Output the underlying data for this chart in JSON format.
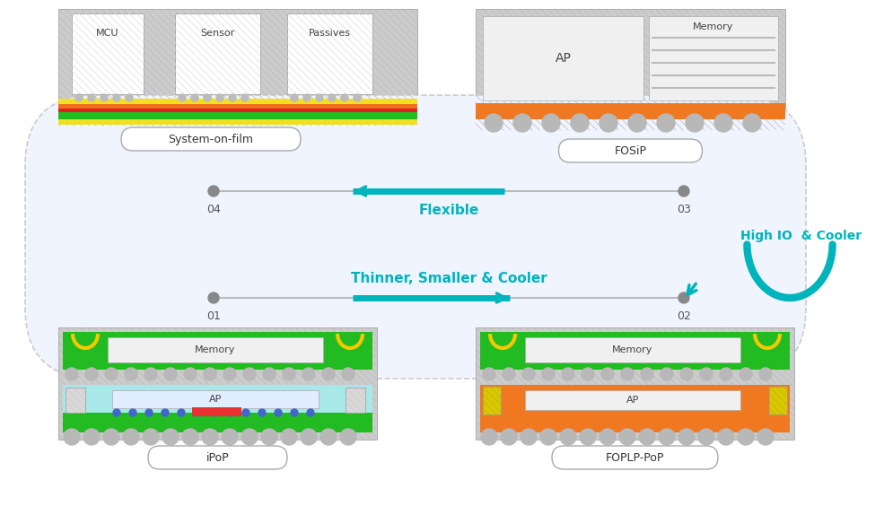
{
  "bg_color": "#ffffff",
  "teal": "#00b4bc",
  "gray": "#a0a0a0",
  "green": "#22bb22",
  "orange": "#f07820",
  "yellow": "#f5c800",
  "cyan_light": "#a8e8e8",
  "hatch_bg": "#cccccc",
  "chip_bg": "#e8e8e8",
  "chip_light": "#f0f0f0",
  "labels": {
    "system_on_film": "System-on-film",
    "fosip": "FOSiP",
    "ipop": "iPoP",
    "foplp_pop": "FOPLP-PoP",
    "flexible": "Flexible",
    "high_io_cooler": "High IO  & Cooler",
    "thinner": "Thinner, Smaller & Cooler",
    "n01": "01",
    "n02": "02",
    "n03": "03",
    "n04": "04",
    "mcu": "MCU",
    "sensor": "Sensor",
    "passives": "Passives",
    "ap": "AP",
    "memory": "Memory"
  }
}
